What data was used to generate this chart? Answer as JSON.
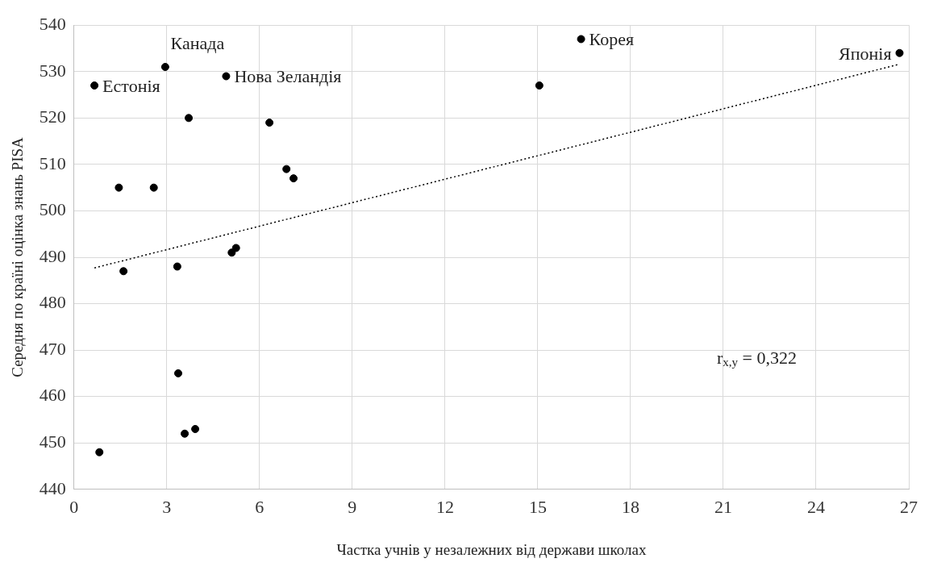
{
  "chart_data": {
    "type": "scatter",
    "xlabel": "Частка учнів у незалежних від держави школах",
    "ylabel": "Середня по країні оцінка знань PISA",
    "xlim": [
      0,
      27
    ],
    "xticks": [
      0,
      3,
      6,
      9,
      12,
      15,
      18,
      21,
      24,
      27
    ],
    "ylim": [
      440,
      540
    ],
    "yticks": [
      440,
      450,
      460,
      470,
      480,
      490,
      500,
      510,
      520,
      530,
      540
    ],
    "grid": true,
    "legend": false,
    "marker": "circle",
    "series": [
      {
        "color": "#000000",
        "x": [
          0.66,
          0.82,
          1.45,
          1.6,
          2.58,
          2.95,
          3.34,
          3.37,
          3.58,
          3.71,
          3.92,
          4.92,
          5.1,
          5.24,
          6.32,
          6.87,
          7.1,
          15.05,
          16.4,
          26.7
        ],
        "values": [
          527,
          448,
          505,
          487,
          505,
          531,
          488,
          465,
          452,
          520,
          453,
          529,
          491,
          492,
          519,
          509,
          507,
          527,
          537,
          534
        ]
      },
      {
        "type": "line",
        "color": "#000000",
        "line_style": "dotted",
        "marker": "none",
        "x": [
          0.66,
          26.7
        ],
        "values": [
          487.7,
          531.6
        ]
      }
    ],
    "annotations": [
      {
        "text": "Естонія",
        "x": 0.66,
        "y": 527
      },
      {
        "text": "Канада",
        "x": 2.95,
        "y": 531
      },
      {
        "text": "Нова Зеландія",
        "x": 4.92,
        "y": 529
      },
      {
        "text": "Корея",
        "x": 16.4,
        "y": 537
      },
      {
        "text": "Японія",
        "x": 26.7,
        "y": 534
      },
      "r$_{x,y}$ = 0,322"
    ]
  }
}
